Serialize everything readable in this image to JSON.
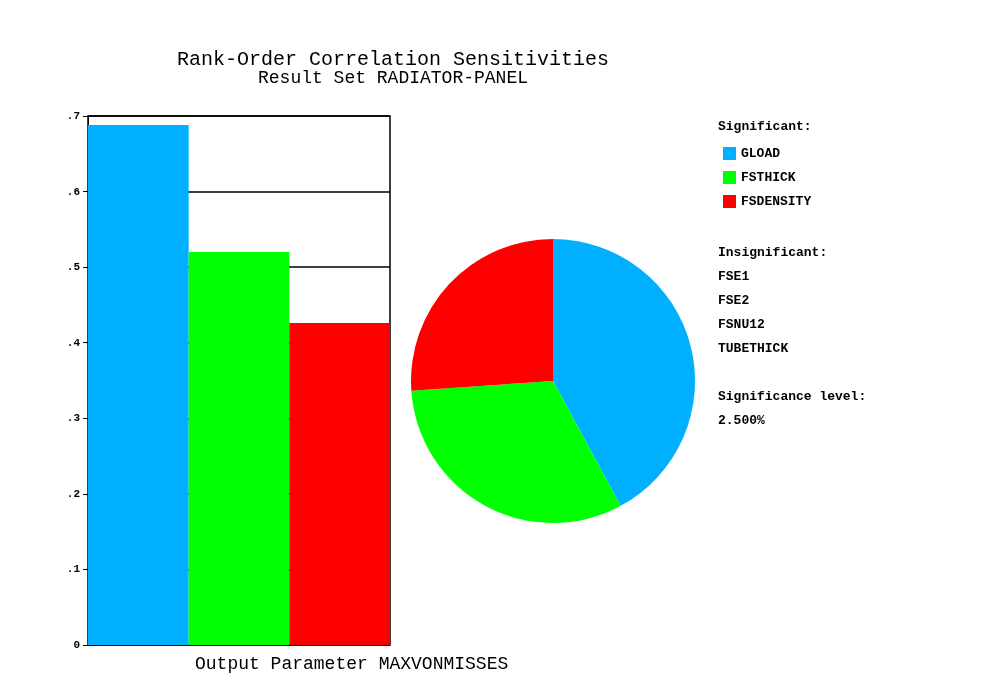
{
  "chart_data": [
    {
      "type": "bar",
      "title": "Rank-Order Correlation Sensitivities",
      "subtitle": "Result Set RADIATOR-PANEL",
      "xlabel": "Output Parameter MAXVONMISSES",
      "categories": [
        null,
        null,
        null
      ],
      "values": [
        0.688,
        0.52,
        0.426
      ],
      "colors": [
        "#00b0ff",
        "#00ff00",
        "#ff0000"
      ],
      "ylim": [
        0,
        0.7
      ],
      "yticks": [
        0,
        {
          "value": 0.1,
          "label": ".1"
        },
        {
          "value": 0.2,
          "label": ".2"
        },
        {
          "value": 0.3,
          "label": ".3"
        },
        {
          "value": 0.4,
          "label": ".4"
        },
        {
          "value": 0.5,
          "label": ".5"
        },
        {
          "value": 0.6,
          "label": ".6"
        },
        {
          "value": 0.7,
          "label": ".7"
        }
      ],
      "grid": "y"
    },
    {
      "type": "pie",
      "categories": [
        "GLOAD",
        "FSTHICK",
        "FSDENSITY"
      ],
      "values": [
        42.1,
        31.8,
        26.1
      ],
      "colors": [
        "#00b0ff",
        "#00ff00",
        "#ff0000"
      ],
      "legend": "right",
      "legend_title": "Significant:",
      "annotations": [
        "Insignificant:\nFSE1\nFSE2\nFSNU12\nTUBETHICK",
        "Significance level:\n2.500%"
      ]
    }
  ]
}
